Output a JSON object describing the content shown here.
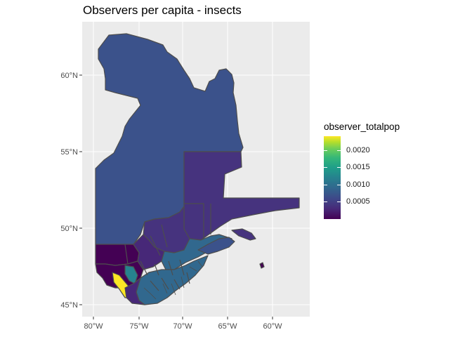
{
  "title": "Observers per capita - insects",
  "axes": {
    "x_ticks": [
      "80°W",
      "75°W",
      "70°W",
      "65°W",
      "60°W"
    ],
    "y_ticks": [
      "60°N",
      "55°N",
      "50°N",
      "45°N"
    ]
  },
  "legend": {
    "title": "observer_totalpop",
    "range": [
      0,
      0.0024
    ],
    "ticks": [
      {
        "value": 0.0005,
        "label": "0.0005"
      },
      {
        "value": 0.001,
        "label": "0.0010"
      },
      {
        "value": 0.0015,
        "label": "0.0015"
      },
      {
        "value": 0.002,
        "label": "0.0020"
      }
    ]
  },
  "colors": {
    "panel_background": "#ebebeb",
    "grid": "#ffffff",
    "region_border": "#4d4d4d",
    "low_value": "#440154",
    "low_mid_value": "#3b528b",
    "mid_value": "#21908c",
    "high_value": "#fde725"
  },
  "map": {
    "region": "Quebec",
    "fill_scale": "viridis"
  }
}
